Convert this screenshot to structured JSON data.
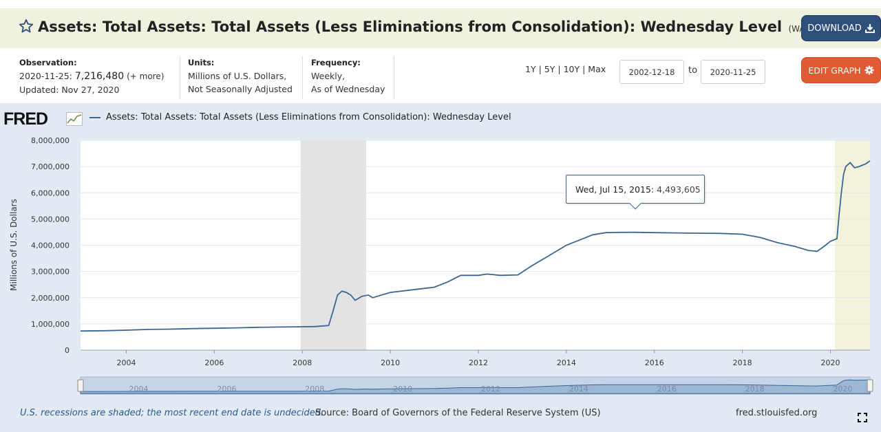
{
  "header": {
    "title": "Assets: Total Assets: Total Assets (Less Eliminations from Consolidation): Wednesday Level",
    "series_id": "(WALCL)",
    "download_label": "DOWNLOAD",
    "star_icon": "star-icon",
    "download_icon": "download-icon"
  },
  "meta": {
    "observation_label": "Observation:",
    "observation_date": "2020-11-25:",
    "observation_value": "7,216,480",
    "observation_more": "(+ more)",
    "updated": "Updated: Nov 27, 2020",
    "units_label": "Units:",
    "units_line1": "Millions of U.S. Dollars,",
    "units_line2": "Not Seasonally Adjusted",
    "frequency_label": "Frequency:",
    "frequency_line1": "Weekly,",
    "frequency_line2": "As of Wednesday"
  },
  "controls": {
    "range_1y": "1Y",
    "range_5y": "5Y",
    "range_10y": "10Y",
    "range_max": "Max",
    "sep": "|",
    "start_date": "2002-12-18",
    "to_label": "to",
    "end_date": "2020-11-25",
    "edit_label": "EDIT GRAPH",
    "gear_icon": "gear-icon"
  },
  "graph": {
    "logo_text": "FRED",
    "legend_label": "Assets: Total Assets: Total Assets (Less Eliminations from Consolidation): Wednesday Level",
    "line_color": "#3a6593",
    "recession_color": "#e3e3e3",
    "highlight_color": "#f3f3dc"
  },
  "tooltip": {
    "date": "Wed, Jul 15, 2015:",
    "value": "4,493,605"
  },
  "chart_data": {
    "type": "line",
    "title": "Assets: Total Assets: Total Assets (Less Eliminations from Consolidation): Wednesday Level",
    "xlabel": "",
    "ylabel": "Millions of U.S. Dollars",
    "xlim": [
      2002.96,
      2020.9
    ],
    "ylim": [
      0,
      8000000
    ],
    "y_ticks": [
      0,
      1000000,
      2000000,
      3000000,
      4000000,
      5000000,
      6000000,
      7000000,
      8000000
    ],
    "y_tick_labels": [
      "0",
      "1,000,000",
      "2,000,000",
      "3,000,000",
      "4,000,000",
      "5,000,000",
      "6,000,000",
      "7,000,000",
      "8,000,000"
    ],
    "x_ticks": [
      2004,
      2006,
      2008,
      2010,
      2012,
      2014,
      2016,
      2018,
      2020
    ],
    "x_tick_labels": [
      "2004",
      "2006",
      "2008",
      "2010",
      "2012",
      "2014",
      "2016",
      "2018",
      "2020"
    ],
    "recessions": [
      [
        2007.96,
        2009.45
      ]
    ],
    "highlight": [
      [
        2020.1,
        2020.9
      ]
    ],
    "series": [
      {
        "name": "WALCL",
        "x": [
          2002.96,
          2003.5,
          2004.0,
          2004.5,
          2005.0,
          2005.5,
          2006.0,
          2006.5,
          2007.0,
          2007.5,
          2007.9,
          2008.3,
          2008.6,
          2008.7,
          2008.8,
          2008.9,
          2009.0,
          2009.1,
          2009.2,
          2009.35,
          2009.5,
          2009.6,
          2009.7,
          2010.0,
          2010.5,
          2011.0,
          2011.3,
          2011.6,
          2012.0,
          2012.2,
          2012.5,
          2012.9,
          2013.2,
          2013.5,
          2013.8,
          2014.0,
          2014.3,
          2014.6,
          2014.9,
          2015.2,
          2015.54,
          2016.0,
          2016.5,
          2017.0,
          2017.5,
          2018.0,
          2018.4,
          2018.8,
          2019.2,
          2019.5,
          2019.7,
          2019.85,
          2020.0,
          2020.15,
          2020.2,
          2020.25,
          2020.3,
          2020.35,
          2020.45,
          2020.55,
          2020.65,
          2020.8,
          2020.9
        ],
        "y": [
          730000,
          740000,
          760000,
          790000,
          800000,
          820000,
          835000,
          850000,
          870000,
          880000,
          890000,
          900000,
          940000,
          1500000,
          2100000,
          2250000,
          2200000,
          2100000,
          1900000,
          2050000,
          2100000,
          2000000,
          2050000,
          2200000,
          2300000,
          2400000,
          2600000,
          2850000,
          2850000,
          2900000,
          2850000,
          2870000,
          3200000,
          3500000,
          3800000,
          4000000,
          4200000,
          4400000,
          4480000,
          4490000,
          4493605,
          4480000,
          4470000,
          4460000,
          4450000,
          4420000,
          4300000,
          4100000,
          3950000,
          3800000,
          3770000,
          3950000,
          4150000,
          4250000,
          5200000,
          6000000,
          6700000,
          7000000,
          7150000,
          6950000,
          7000000,
          7100000,
          7216480
        ]
      }
    ]
  },
  "navigator": {
    "x_tick_labels": [
      "2004",
      "2006",
      "2008",
      "2010",
      "2012",
      "2014",
      "2016",
      "2018",
      "2020"
    ]
  },
  "footer": {
    "note": "U.S. recessions are shaded; the most recent end date is undecided.",
    "source": "Source: Board of Governors of the Federal Reserve System (US)",
    "site": "fred.stlouisfed.org",
    "fullscreen_icon": "fullscreen-icon"
  }
}
